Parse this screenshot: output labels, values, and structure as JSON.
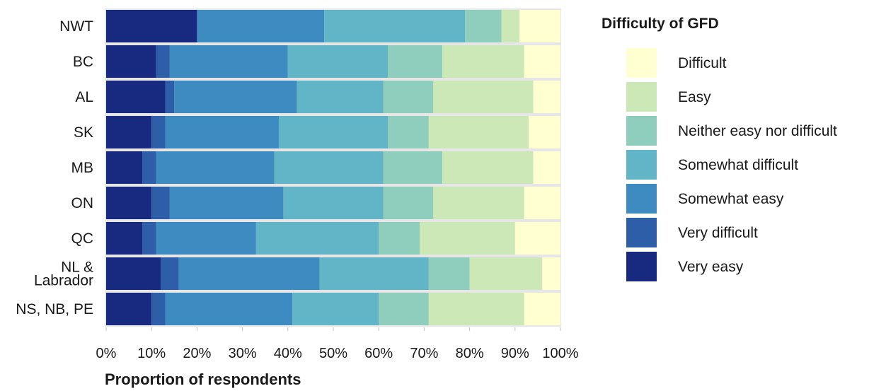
{
  "chart_data": {
    "type": "bar",
    "orientation": "horizontal",
    "stacked": true,
    "xlabel": "Proportion of respondents",
    "xlim": [
      0,
      100
    ],
    "x_ticks": [
      "0%",
      "10%",
      "20%",
      "30%",
      "40%",
      "50%",
      "60%",
      "70%",
      "80%",
      "90%",
      "100%"
    ],
    "categories": [
      "NWT",
      "BC",
      "AL",
      "SK",
      "MB",
      "ON",
      "QC",
      "NL & Labrador",
      "NS, NB, PE"
    ],
    "category_lines": [
      [
        "NWT"
      ],
      [
        "BC"
      ],
      [
        "AL"
      ],
      [
        "SK"
      ],
      [
        "MB"
      ],
      [
        "ON"
      ],
      [
        "QC"
      ],
      [
        "NL &",
        "Labrador"
      ],
      [
        "NS, NB, PE"
      ]
    ],
    "legend": {
      "title": "Difficulty of GFD",
      "placement": "right",
      "order": [
        "Difficult",
        "Easy",
        "Neither easy nor difficult",
        "Somewhat difficult",
        "Somewhat easy",
        "Very difficult",
        "Very easy"
      ]
    },
    "grid": false,
    "series": [
      {
        "name": "Very easy",
        "color": "#172a7f",
        "values": [
          20,
          11,
          13,
          10,
          8,
          10,
          8,
          12,
          10
        ]
      },
      {
        "name": "Very difficult",
        "color": "#2e5ea8",
        "values": [
          0,
          3,
          2,
          3,
          3,
          4,
          3,
          4,
          3
        ]
      },
      {
        "name": "Somewhat easy",
        "color": "#3d8bc0",
        "values": [
          28,
          26,
          27,
          25,
          26,
          25,
          22,
          31,
          28
        ]
      },
      {
        "name": "Somewhat difficult",
        "color": "#62b5c6",
        "values": [
          31,
          22,
          19,
          24,
          24,
          22,
          27,
          24,
          19
        ]
      },
      {
        "name": "Neither easy nor difficult",
        "color": "#8fcdbd",
        "values": [
          8,
          12,
          11,
          9,
          13,
          11,
          9,
          9,
          11
        ]
      },
      {
        "name": "Easy",
        "color": "#cde8b7",
        "values": [
          4,
          18,
          22,
          22,
          20,
          20,
          21,
          16,
          21
        ]
      },
      {
        "name": "Difficult",
        "color": "#ffffd2",
        "values": [
          9,
          8,
          6,
          7,
          6,
          8,
          10,
          4,
          8
        ]
      }
    ]
  }
}
